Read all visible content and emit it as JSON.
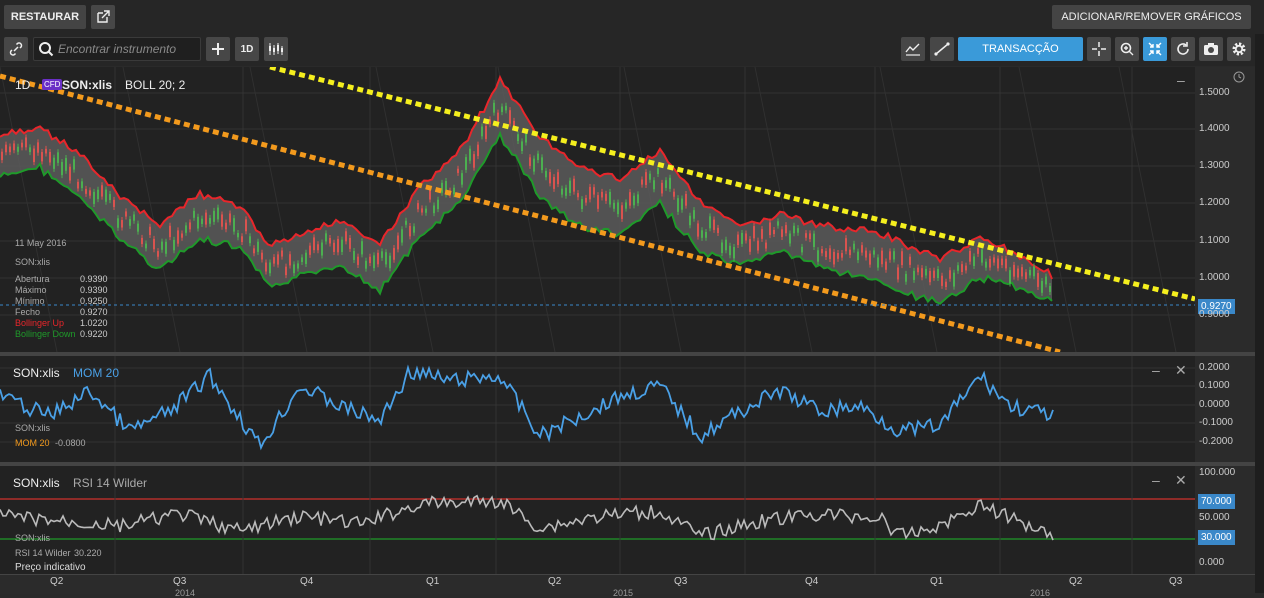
{
  "topbar": {
    "restore_label": "RESTAURAR",
    "add_remove_label": "ADICIONAR/REMOVER GRÁFICOS"
  },
  "toolbar": {
    "search_placeholder": "Encontrar instrumento",
    "interval": "1D",
    "transaction_label": "TRANSACÇÃO"
  },
  "main_panel": {
    "interval": "1D",
    "badge": "CFD",
    "instrument": "SON:xlis",
    "indicator": "BOLL 20; 2",
    "info": {
      "date": "11 May 2016",
      "symbol": "SON:xlis",
      "rows": [
        {
          "label": "Abertura",
          "value": "0.9390"
        },
        {
          "label": "Máximo",
          "value": "0.9390"
        },
        {
          "label": "Mínimo",
          "value": "0.9250"
        },
        {
          "label": "Fecho",
          "value": "0.9270"
        },
        {
          "label": "Bollinger Up",
          "value": "1.0220"
        },
        {
          "label": "Bollinger Down",
          "value": "0.9220"
        }
      ]
    },
    "scale": [
      "1.5000",
      "1.4000",
      "1.3000",
      "1.2000",
      "1.1000",
      "1.0000",
      "0.9000"
    ],
    "last_price": "0.9270",
    "colors": {
      "upper_band": "#e8262b",
      "lower_band": "#1f9a2a",
      "fill": "#5a5a5a",
      "yellow_trend": "#f5ef1e",
      "orange_trend": "#f39a1d"
    }
  },
  "mom_panel": {
    "instrument": "SON:xlis",
    "indicator": "MOM 20",
    "legend_symbol": "SON:xlis",
    "legend_label": "MOM 20",
    "legend_value": "-0.0800",
    "scale": [
      "0.2000",
      "0.1000",
      "0.0000",
      "-0.1000",
      "-0.2000"
    ],
    "color": "#4aa0e6"
  },
  "rsi_panel": {
    "instrument": "SON:xlis",
    "indicator": "RSI 14 Wilder",
    "legend_symbol": "SON:xlis",
    "legend_label": "RSI 14 Wilder",
    "legend_value": "30.220",
    "price_note": "Preço indicativo",
    "scale": [
      "100.000",
      "50.000",
      "0.000"
    ],
    "upper_level": "70.000",
    "lower_level": "30.000"
  },
  "time_axis": {
    "quarters": [
      "Q2",
      "Q3",
      "Q4",
      "Q1",
      "Q2",
      "Q3",
      "Q4",
      "Q1",
      "Q2",
      "Q3"
    ],
    "years": [
      "2014",
      "2015",
      "2016"
    ]
  }
}
